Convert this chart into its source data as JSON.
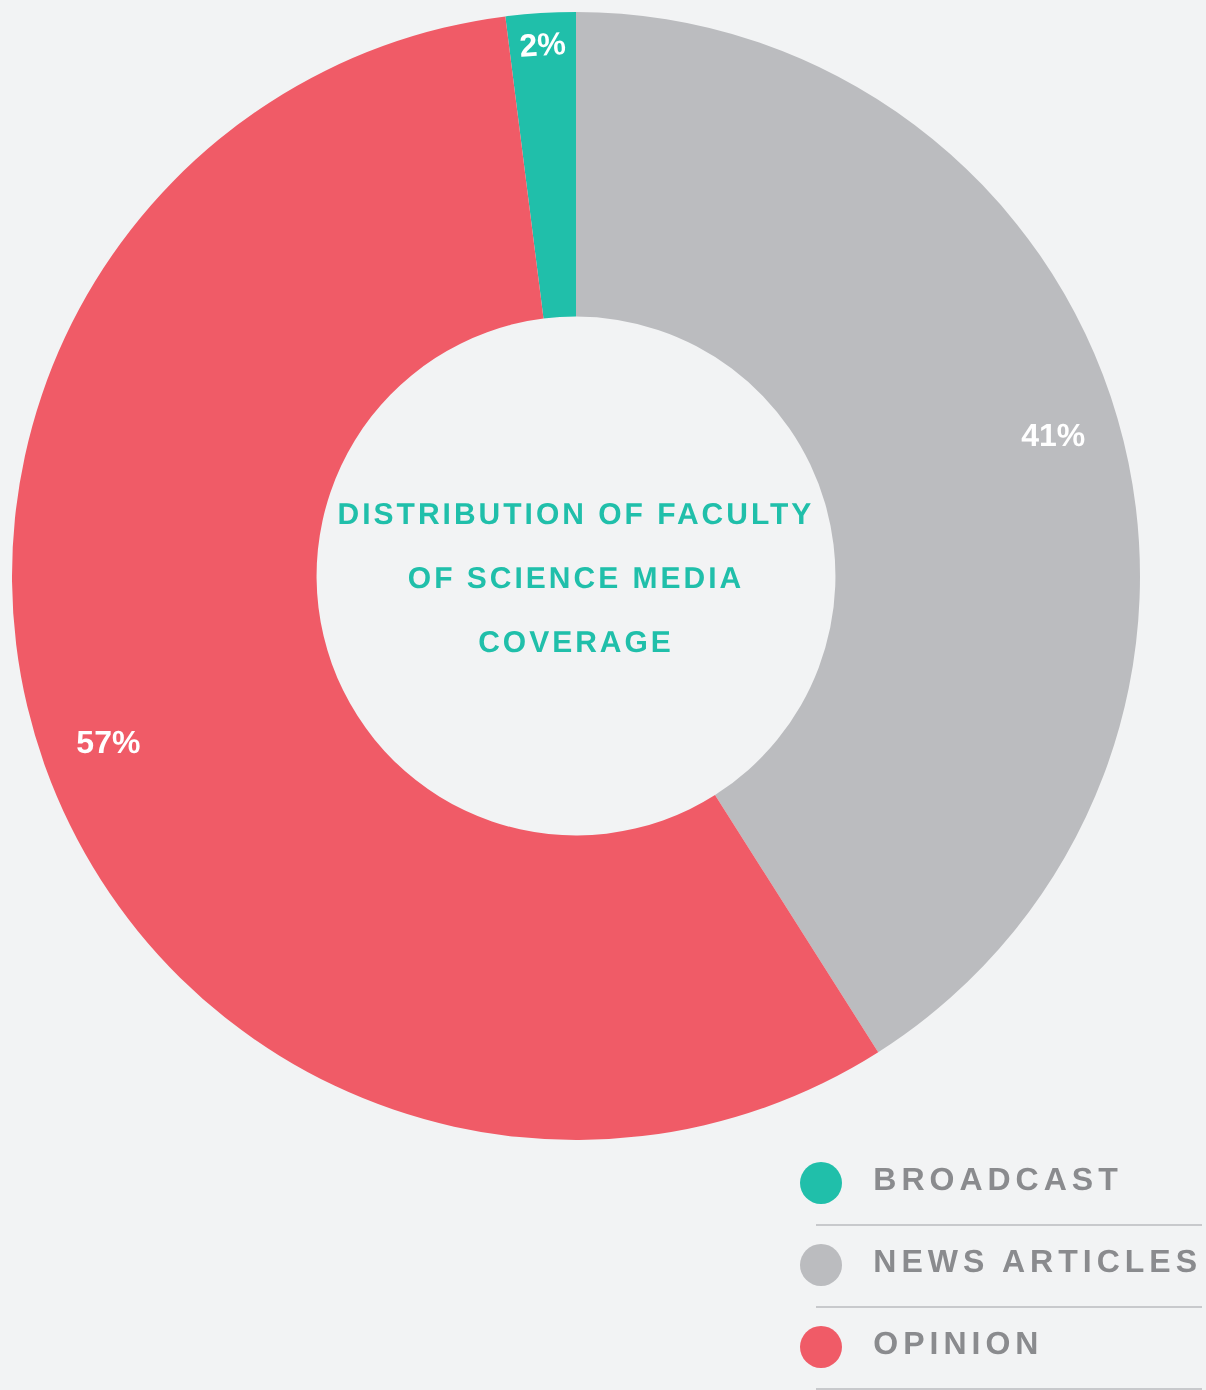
{
  "chart_data": {
    "type": "donut",
    "title": "DISTRIBUTION OF FACULTY OF SCIENCE MEDIA COVERAGE",
    "categories": [
      "BROADCAST",
      "NEWS ARTICLES",
      "OPINION"
    ],
    "values": [
      2,
      41,
      57
    ],
    "value_labels": [
      "2%",
      "41%",
      "57%"
    ],
    "colors": [
      "#20bfaa",
      "#bbbcbf",
      "#f05b67"
    ],
    "legend": "bottom right"
  }
}
